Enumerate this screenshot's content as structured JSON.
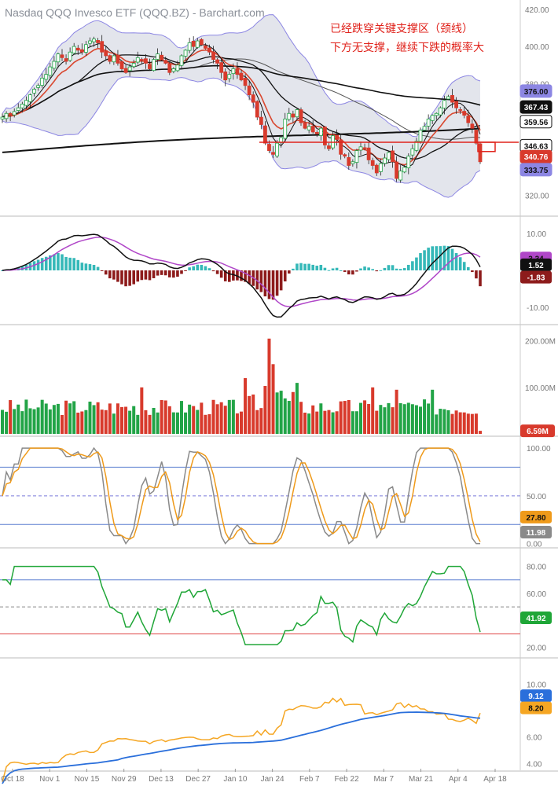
{
  "title": "Nasdaq QQQ Invesco ETF (QQQ.BZ) - Barchart.com",
  "annotation": [
    "已经跌穿关键支撑区（颈线）",
    "下方无支撑，继续下跌的概率大"
  ],
  "colors": {
    "up": "#22a447",
    "down": "#d83a2c",
    "ma_black": "#111111",
    "ma_red": "#d9472f",
    "ma_gray": "#555555",
    "bb_fill": "#e3e5ec",
    "bb_line": "#8c86e3",
    "macd_signal": "#b046c8",
    "macd_up": "#35b8b8",
    "macd_down": "#8d1b1b",
    "stoch_k": "#8a8a8a",
    "stoch_d": "#ef9a1a",
    "rsi": "#1fa637",
    "ref_blue": "#5b7fd0",
    "ref_red": "#e04545",
    "hv20": "#f5a623",
    "hv60": "#2a6fdb",
    "annotation": "#e0231c"
  },
  "x_axis": [
    "Oct 18",
    "Nov 1",
    "Nov 15",
    "Nov 29",
    "Dec 13",
    "Dec 27",
    "Jan 10",
    "Jan 24",
    "Feb 7",
    "Feb 22",
    "Mar 7",
    "Mar 21",
    "Apr 4",
    "Apr 18"
  ],
  "chart_data": [
    {
      "type": "candlestick",
      "name": "price",
      "ylim": [
        310,
        425
      ],
      "yticks": [
        "420.00",
        "400.00",
        "380.00",
        "360.00",
        "340.00",
        "320.00"
      ],
      "ytick_values": [
        420,
        400,
        380,
        360,
        340,
        320
      ],
      "badges": [
        {
          "text": "376.00",
          "value": 376.0,
          "bg": "#8c86e3",
          "fg": "#111"
        },
        {
          "text": "367.43",
          "value": 367.43,
          "bg": "#111",
          "fg": "#fff"
        },
        {
          "text": "359.56",
          "value": 359.56,
          "bg": "#fff",
          "fg": "#111",
          "border": "#111"
        },
        {
          "text": "346.63",
          "value": 346.63,
          "bg": "#fff",
          "fg": "#111",
          "border": "#111"
        },
        {
          "text": "340.76",
          "value": 340.76,
          "bg": "#d83a2c",
          "fg": "#fff"
        },
        {
          "text": "333.75",
          "value": 333.75,
          "bg": "#8c86e3",
          "fg": "#111"
        }
      ],
      "close": [
        362,
        364,
        363,
        365,
        367,
        369,
        371,
        374,
        377,
        379,
        383,
        385,
        389,
        392,
        396,
        394,
        392,
        397,
        400,
        398,
        397,
        401,
        403,
        404,
        402,
        397,
        395,
        392,
        395,
        391,
        388,
        386,
        389,
        391,
        394,
        393,
        391,
        388,
        393,
        396,
        393,
        391,
        386,
        388,
        390,
        395,
        398,
        402,
        400,
        403,
        401,
        399,
        397,
        393,
        391,
        386,
        382,
        385,
        388,
        385,
        382,
        379,
        374,
        370,
        362,
        358,
        348,
        344,
        342,
        348,
        351,
        361,
        364,
        362,
        366,
        359,
        356,
        357,
        354,
        353,
        356,
        347,
        345,
        352,
        350,
        342,
        341,
        336,
        338,
        344,
        346,
        345,
        339,
        336,
        332,
        337,
        340,
        343,
        338,
        329,
        333,
        335,
        341,
        345,
        349,
        355,
        357,
        361,
        363,
        364,
        367,
        371,
        373,
        370,
        367,
        366,
        363,
        359,
        356,
        348,
        338
      ]
    },
    {
      "type": "macd_histogram",
      "name": "MACD",
      "ylim": [
        -14,
        14
      ],
      "yticks": [
        "10.00",
        "-10.00"
      ],
      "ytick_values": [
        10,
        -10
      ],
      "badges": [
        {
          "text": "3.34",
          "value": 3.34,
          "bg": "#b046c8",
          "fg": "#111"
        },
        {
          "text": "1.52",
          "value": 1.52,
          "bg": "#111",
          "fg": "#fff"
        },
        {
          "text": "-1.83",
          "value": -1.83,
          "bg": "#8d1b1b",
          "fg": "#fff"
        }
      ]
    },
    {
      "type": "bar",
      "name": "Volume",
      "ylim": [
        0,
        230
      ],
      "yticks": [
        "200.00M",
        "100.00M"
      ],
      "ytick_values": [
        200,
        100
      ],
      "badges": [
        {
          "text": "6.59M",
          "value": 6.59,
          "bg": "#d83a2c",
          "fg": "#fff"
        }
      ]
    },
    {
      "type": "line",
      "name": "Stochastic",
      "ylim": [
        -2,
        110
      ],
      "yticks": [
        "100.00",
        "50.00",
        "0.00"
      ],
      "ytick_values": [
        100,
        50,
        0
      ],
      "levels": [
        80,
        20
      ],
      "badges": [
        {
          "text": "27.80",
          "value": 27.8,
          "bg": "#ef9a1a",
          "fg": "#111"
        },
        {
          "text": "11.98",
          "value": 11.98,
          "bg": "#8a8a8a",
          "fg": "#fff"
        }
      ]
    },
    {
      "type": "line",
      "name": "RSI",
      "ylim": [
        14,
        92
      ],
      "yticks": [
        "80.00",
        "60.00",
        "40.00",
        "20.00"
      ],
      "ytick_values": [
        80,
        60,
        40,
        20
      ],
      "levels": [
        70,
        30,
        50
      ],
      "badges": [
        {
          "text": "41.92",
          "value": 41.92,
          "bg": "#1fa637",
          "fg": "#fff"
        }
      ]
    },
    {
      "type": "line",
      "name": "Volatility",
      "ylim": [
        3.6,
        11.8
      ],
      "yticks": [
        "10.00",
        "8.00",
        "6.00",
        "4.00"
      ],
      "ytick_values": [
        10,
        8,
        6,
        4
      ],
      "badges": [
        {
          "text": "9.12",
          "value": 9.12,
          "bg": "#2a6fdb",
          "fg": "#fff"
        },
        {
          "text": "8.20",
          "value": 8.2,
          "bg": "#f5a623",
          "fg": "#111"
        }
      ]
    }
  ]
}
